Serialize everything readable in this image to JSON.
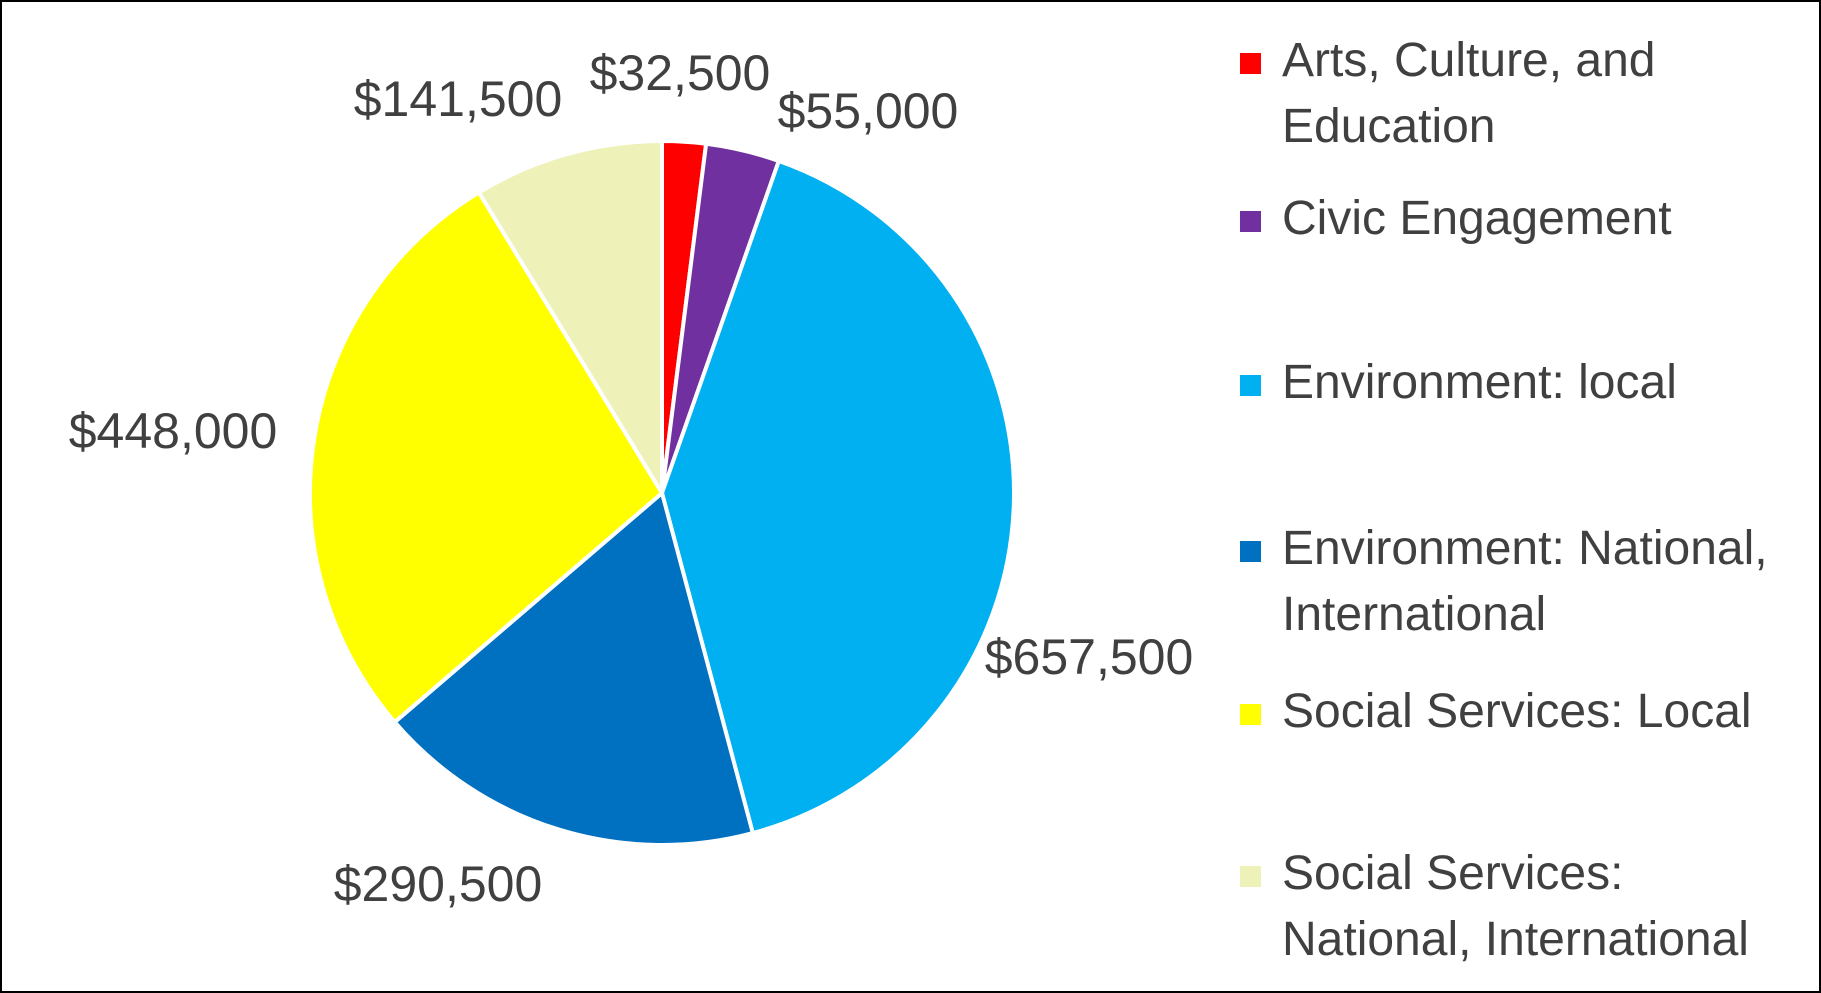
{
  "chart_data": {
    "type": "pie",
    "categories": [
      "Arts, Culture, and Education",
      "Civic Engagement",
      "Environment: local",
      "Environment: National, International",
      "Social Services: Local",
      "Social Services: National, International"
    ],
    "values": [
      32500,
      55000,
      657500,
      290500,
      448000,
      141500
    ],
    "data_labels": [
      "$32,500",
      "$55,000",
      "$657,500",
      "$290,500",
      "$448,000",
      "$141,500"
    ],
    "colors": [
      "#ff0000",
      "#7030a0",
      "#00b0f0",
      "#0070c0",
      "#ffff00",
      "#eef2b8"
    ],
    "legend_position": "right",
    "start_angle": "top",
    "direction": "clockwise"
  }
}
